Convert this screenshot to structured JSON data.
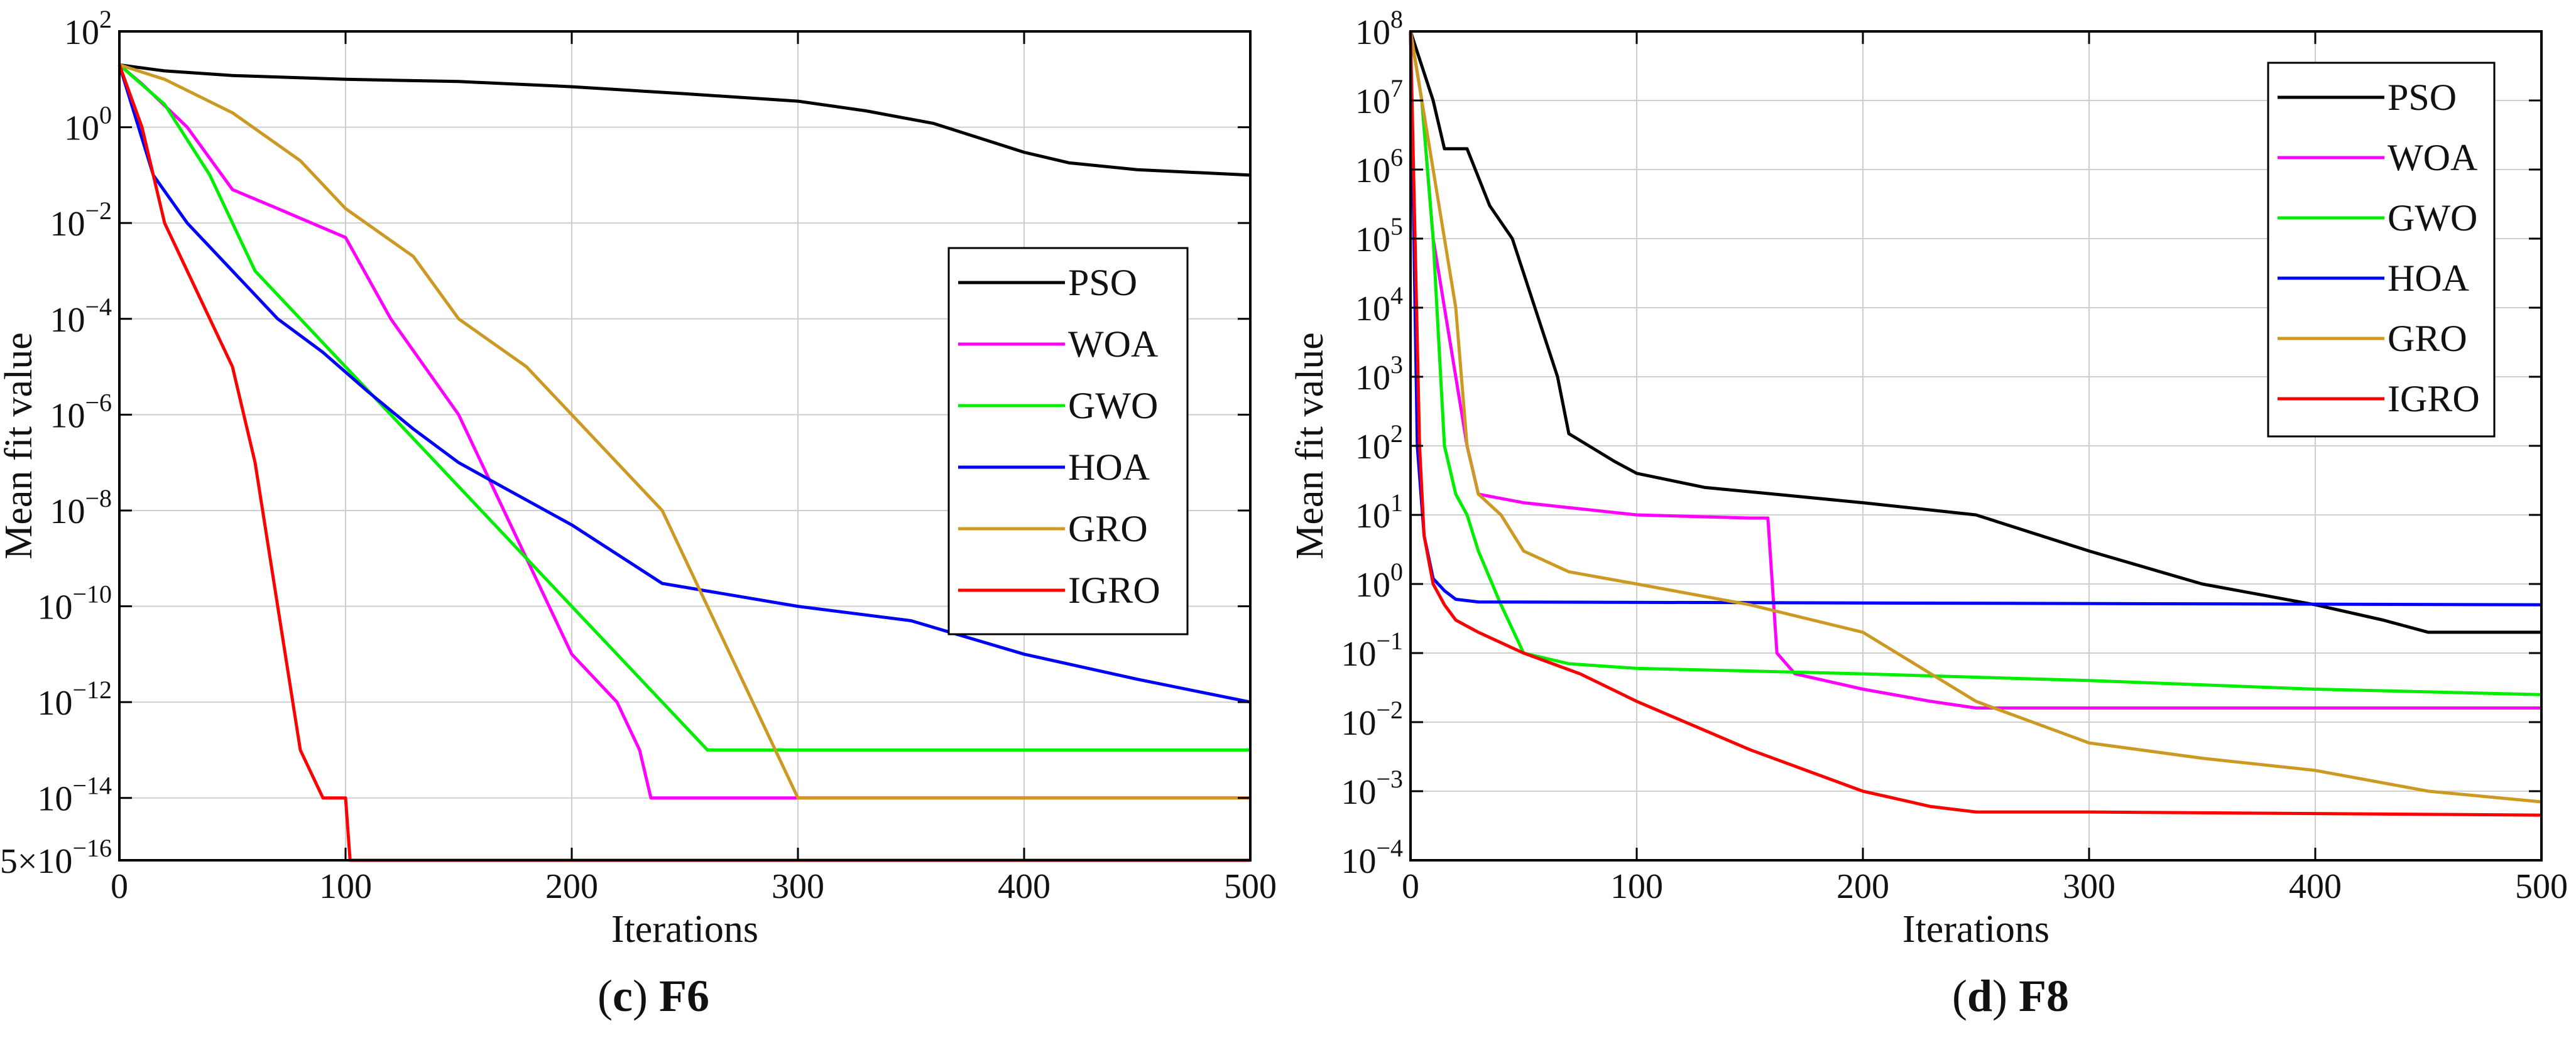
{
  "figure": {
    "panels": [
      {
        "caption_letter": "c",
        "caption_name": "F6"
      },
      {
        "caption_letter": "d",
        "caption_name": "F8"
      }
    ]
  },
  "colors": {
    "PSO": "#000000",
    "WOA": "#ff00ff",
    "GWO": "#00ee00",
    "HOA": "#0000ff",
    "GRO": "#cc9922",
    "IGRO": "#ff0000"
  },
  "chart_data": [
    {
      "type": "line",
      "caption": "(c) F6",
      "xlabel": "Iterations",
      "ylabel": "Mean fit value",
      "xlim": [
        0,
        500
      ],
      "ylim": [
        5e-16,
        100
      ],
      "yscale": "log",
      "grid": true,
      "legend_position": "right-middle",
      "x_ticks": [
        "0",
        "100",
        "200",
        "300",
        "400",
        "500"
      ],
      "y_ticks": [
        {
          "value": 5e-16,
          "base": "5×10",
          "exp": "−16"
        },
        {
          "value": 1e-14,
          "base": "10",
          "exp": "−14"
        },
        {
          "value": 1e-12,
          "base": "10",
          "exp": "−12"
        },
        {
          "value": 1e-10,
          "base": "10",
          "exp": "−10"
        },
        {
          "value": 1e-08,
          "base": "10",
          "exp": "−8"
        },
        {
          "value": 1e-06,
          "base": "10",
          "exp": "−6"
        },
        {
          "value": 0.0001,
          "base": "10",
          "exp": "−4"
        },
        {
          "value": 0.01,
          "base": "10",
          "exp": "−2"
        },
        {
          "value": 1,
          "base": "10",
          "exp": "0"
        },
        {
          "value": 100,
          "base": "10",
          "exp": "2"
        }
      ],
      "series": [
        {
          "name": "PSO",
          "x": [
            0,
            20,
            50,
            100,
            150,
            200,
            250,
            300,
            330,
            360,
            380,
            400,
            420,
            450,
            500
          ],
          "y": [
            20,
            15,
            12,
            10,
            9,
            7,
            5,
            3.5,
            2.2,
            1.2,
            0.6,
            0.3,
            0.18,
            0.13,
            0.1
          ]
        },
        {
          "name": "WOA",
          "x": [
            0,
            10,
            30,
            50,
            70,
            100,
            120,
            150,
            170,
            190,
            200,
            220,
            230,
            235,
            500
          ],
          "y": [
            20,
            8,
            1,
            0.05,
            0.02,
            0.005,
            0.0001,
            1e-06,
            1e-08,
            1e-10,
            1e-11,
            1e-12,
            1e-13,
            1e-14,
            1e-14
          ]
        },
        {
          "name": "GWO",
          "x": [
            0,
            20,
            40,
            60,
            80,
            100,
            120,
            140,
            160,
            180,
            200,
            220,
            240,
            260,
            280,
            300,
            500
          ],
          "y": [
            20,
            3,
            0.1,
            0.001,
            0.0001,
            1e-05,
            1e-06,
            1e-07,
            1e-08,
            1e-09,
            1e-10,
            1e-11,
            1e-12,
            1e-13,
            1e-13,
            1e-13,
            1e-13
          ]
        },
        {
          "name": "HOA",
          "x": [
            0,
            15,
            30,
            50,
            70,
            90,
            110,
            130,
            150,
            170,
            200,
            240,
            300,
            350,
            400,
            450,
            500
          ],
          "y": [
            20,
            0.1,
            0.01,
            0.001,
            0.0001,
            2e-05,
            3e-06,
            5e-07,
            1e-07,
            3e-08,
            5e-09,
            3e-10,
            1e-10,
            5e-11,
            1e-11,
            3e-12,
            1e-12
          ]
        },
        {
          "name": "GRO",
          "x": [
            0,
            20,
            50,
            80,
            100,
            130,
            150,
            180,
            200,
            220,
            240,
            260,
            280,
            300,
            302,
            500
          ],
          "y": [
            20,
            10,
            2,
            0.2,
            0.02,
            0.002,
            0.0001,
            1e-05,
            1e-06,
            1e-07,
            1e-08,
            1e-10,
            1e-12,
            1e-14,
            1e-14,
            1e-14
          ]
        },
        {
          "name": "IGRO",
          "x": [
            0,
            10,
            20,
            30,
            40,
            50,
            60,
            70,
            80,
            90,
            100,
            102,
            500
          ],
          "y": [
            20,
            1,
            0.01,
            0.001,
            0.0001,
            1e-05,
            1e-07,
            1e-10,
            1e-13,
            1e-14,
            1e-14,
            5e-16,
            5e-16
          ]
        }
      ]
    },
    {
      "type": "line",
      "caption": "(d) F8",
      "xlabel": "Iterations",
      "ylabel": "Mean fit value",
      "xlim": [
        0,
        500
      ],
      "ylim": [
        0.0001,
        100000000.0
      ],
      "yscale": "log",
      "grid": true,
      "legend_position": "top-right",
      "x_ticks": [
        "0",
        "100",
        "200",
        "300",
        "400",
        "500"
      ],
      "y_ticks": [
        {
          "value": 0.0001,
          "base": "10",
          "exp": "−4"
        },
        {
          "value": 0.001,
          "base": "10",
          "exp": "−3"
        },
        {
          "value": 0.01,
          "base": "10",
          "exp": "−2"
        },
        {
          "value": 0.1,
          "base": "10",
          "exp": "−1"
        },
        {
          "value": 1,
          "base": "10",
          "exp": "0"
        },
        {
          "value": 10,
          "base": "10",
          "exp": "1"
        },
        {
          "value": 100,
          "base": "10",
          "exp": "2"
        },
        {
          "value": 1000.0,
          "base": "10",
          "exp": "3"
        },
        {
          "value": 10000.0,
          "base": "10",
          "exp": "4"
        },
        {
          "value": 100000.0,
          "base": "10",
          "exp": "5"
        },
        {
          "value": 1000000.0,
          "base": "10",
          "exp": "6"
        },
        {
          "value": 10000000.0,
          "base": "10",
          "exp": "7"
        },
        {
          "value": 100000000.0,
          "base": "10",
          "exp": "8"
        }
      ],
      "series": [
        {
          "name": "PSO",
          "x": [
            0,
            10,
            15,
            25,
            35,
            45,
            55,
            65,
            70,
            90,
            100,
            130,
            200,
            250,
            300,
            350,
            400,
            430,
            450,
            500
          ],
          "y": [
            100000000.0,
            10000000.0,
            2000000.0,
            2000000.0,
            300000.0,
            100000.0,
            10000.0,
            1000.0,
            150,
            60,
            40,
            25,
            15,
            10,
            3,
            1,
            0.5,
            0.3,
            0.2,
            0.2
          ]
        },
        {
          "name": "WOA",
          "x": [
            0,
            5,
            10,
            15,
            20,
            25,
            30,
            50,
            100,
            150,
            158,
            162,
            170,
            200,
            230,
            250,
            500
          ],
          "y": [
            100000000.0,
            10000000.0,
            100000.0,
            10000.0,
            1000.0,
            100,
            20,
            15,
            10,
            9,
            9,
            0.1,
            0.05,
            0.03,
            0.02,
            0.016,
            0.016
          ]
        },
        {
          "name": "GWO",
          "x": [
            0,
            5,
            10,
            15,
            20,
            25,
            30,
            40,
            50,
            70,
            100,
            150,
            200,
            300,
            400,
            500
          ],
          "y": [
            100000000.0,
            10000000.0,
            100000.0,
            100,
            20,
            10,
            3,
            0.5,
            0.1,
            0.07,
            0.06,
            0.055,
            0.05,
            0.04,
            0.03,
            0.025
          ]
        },
        {
          "name": "HOA",
          "x": [
            0,
            3,
            6,
            10,
            15,
            20,
            30,
            500
          ],
          "y": [
            100000000.0,
            100,
            5,
            1.2,
            0.8,
            0.6,
            0.55,
            0.5
          ]
        },
        {
          "name": "GRO",
          "x": [
            0,
            10,
            20,
            25,
            30,
            40,
            50,
            70,
            100,
            150,
            200,
            250,
            300,
            350,
            400,
            450,
            500
          ],
          "y": [
            100000000.0,
            1000000.0,
            10000.0,
            100,
            20,
            10,
            3,
            1.5,
            1,
            0.5,
            0.2,
            0.02,
            0.005,
            0.003,
            0.002,
            0.001,
            0.0007
          ]
        },
        {
          "name": "IGRO",
          "x": [
            0,
            2,
            4,
            6,
            10,
            15,
            20,
            30,
            50,
            75,
            100,
            150,
            200,
            230,
            250,
            300,
            500
          ],
          "y": [
            100000000.0,
            100000.0,
            100,
            5,
            1,
            0.5,
            0.3,
            0.2,
            0.1,
            0.05,
            0.02,
            0.004,
            0.001,
            0.0006,
            0.0005,
            0.0005,
            0.00045
          ]
        }
      ]
    }
  ]
}
